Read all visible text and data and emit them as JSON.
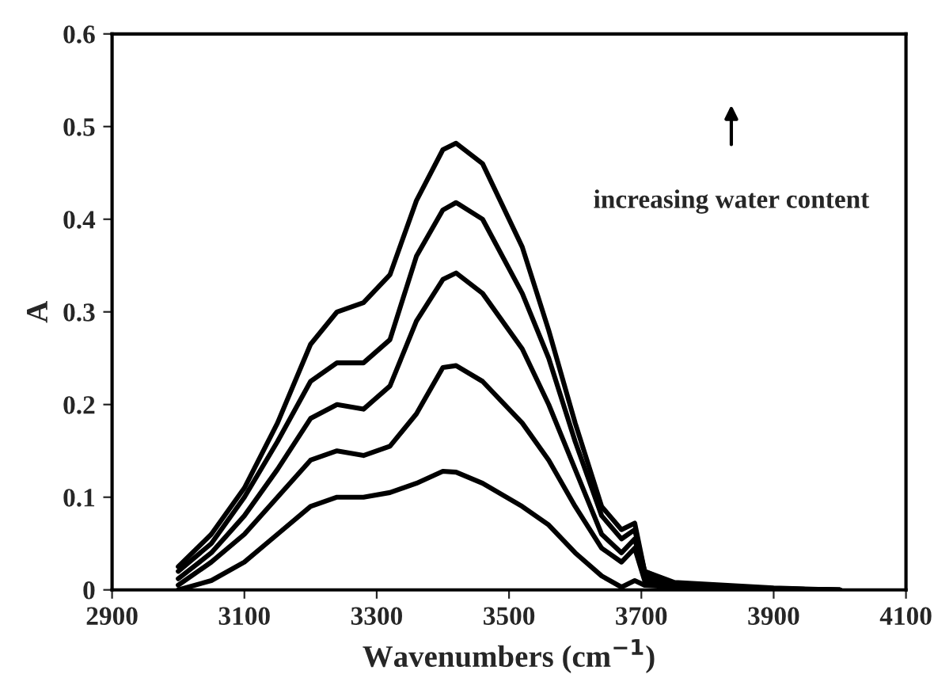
{
  "chart_data": {
    "type": "line",
    "xlabel": "Wavenumbers (cm$^{−1}$)",
    "ylabel": "A",
    "annotations": [
      "increasing water content"
    ],
    "xlim": [
      2900,
      4100
    ],
    "xticks": [
      2900,
      3100,
      3300,
      3500,
      3700,
      3900,
      4100
    ],
    "ylim": [
      0,
      0.6
    ],
    "yticks": [
      0,
      0.1,
      0.2,
      0.3,
      0.4,
      0.5,
      0.6
    ],
    "grid": false,
    "legend": false,
    "marker": "none",
    "line_style": "solid",
    "x": [
      3000,
      3050,
      3100,
      3150,
      3200,
      3240,
      3280,
      3320,
      3360,
      3400,
      3420,
      3460,
      3520,
      3560,
      3600,
      3640,
      3670,
      3690,
      3705,
      3750,
      3900,
      4000
    ],
    "series": [
      {
        "color": "#000000",
        "values": [
          0.0,
          0.01,
          0.03,
          0.06,
          0.09,
          0.1,
          0.1,
          0.105,
          0.115,
          0.128,
          0.127,
          0.115,
          0.09,
          0.07,
          0.04,
          0.015,
          0.003,
          0.01,
          0.005,
          0.003,
          0.001,
          0.0
        ]
      },
      {
        "color": "#000000",
        "values": [
          0.005,
          0.03,
          0.06,
          0.1,
          0.14,
          0.15,
          0.145,
          0.155,
          0.19,
          0.24,
          0.242,
          0.225,
          0.18,
          0.14,
          0.09,
          0.045,
          0.03,
          0.045,
          0.01,
          0.004,
          0.001,
          0.0
        ]
      },
      {
        "color": "#000000",
        "values": [
          0.012,
          0.04,
          0.08,
          0.13,
          0.185,
          0.2,
          0.195,
          0.22,
          0.29,
          0.335,
          0.342,
          0.32,
          0.26,
          0.2,
          0.13,
          0.06,
          0.04,
          0.055,
          0.015,
          0.005,
          0.001,
          0.0
        ]
      },
      {
        "color": "#000000",
        "values": [
          0.02,
          0.05,
          0.1,
          0.16,
          0.225,
          0.245,
          0.245,
          0.27,
          0.36,
          0.41,
          0.418,
          0.4,
          0.32,
          0.25,
          0.16,
          0.08,
          0.055,
          0.065,
          0.02,
          0.006,
          0.001,
          0.0
        ]
      },
      {
        "color": "#000000",
        "values": [
          0.025,
          0.06,
          0.11,
          0.18,
          0.265,
          0.3,
          0.31,
          0.34,
          0.42,
          0.475,
          0.482,
          0.46,
          0.37,
          0.28,
          0.18,
          0.09,
          0.065,
          0.072,
          0.02,
          0.008,
          0.002,
          0.0
        ]
      }
    ]
  }
}
